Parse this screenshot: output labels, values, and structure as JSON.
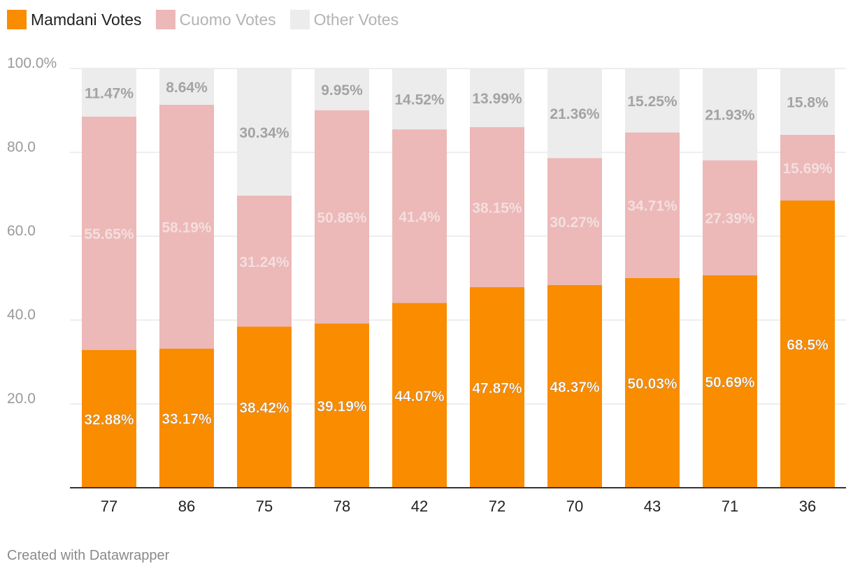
{
  "chart_data": {
    "type": "bar",
    "stacked": true,
    "categories": [
      "77",
      "86",
      "75",
      "78",
      "42",
      "72",
      "70",
      "43",
      "71",
      "36"
    ],
    "series": [
      {
        "name": "Mamdani Votes",
        "color": "#fa8c00",
        "label_color": "#ffffff",
        "values": [
          32.88,
          33.17,
          38.42,
          39.19,
          44.07,
          47.87,
          48.37,
          50.03,
          50.69,
          68.5
        ],
        "labels": [
          "32.88%",
          "33.17%",
          "38.42%",
          "39.19%",
          "44.07%",
          "47.87%",
          "48.37%",
          "50.03%",
          "50.69%",
          "68.5%"
        ]
      },
      {
        "name": "Cuomo Votes",
        "color": "#ecb8b8",
        "label_color": "#f4dede",
        "values": [
          55.65,
          58.19,
          31.24,
          50.86,
          41.4,
          38.15,
          30.27,
          34.71,
          27.39,
          15.69
        ],
        "labels": [
          "55.65%",
          "58.19%",
          "31.24%",
          "50.86%",
          "41.4%",
          "38.15%",
          "30.27%",
          "34.71%",
          "27.39%",
          "15.69%"
        ]
      },
      {
        "name": "Other Votes",
        "color": "#ececec",
        "label_color": "#a3a3a3",
        "values": [
          11.47,
          8.64,
          30.34,
          9.95,
          14.52,
          13.99,
          21.36,
          15.25,
          21.93,
          15.8
        ],
        "labels": [
          "11.47%",
          "8.64%",
          "30.34%",
          "9.95%",
          "14.52%",
          "13.99%",
          "21.36%",
          "15.25%",
          "21.93%",
          "15.8%"
        ]
      }
    ],
    "yticks": [
      20,
      40,
      60,
      80,
      100
    ],
    "ytick_labels": [
      "20.0",
      "40.0",
      "60.0",
      "80.0",
      "100.0%"
    ],
    "ylim": [
      0,
      100
    ],
    "grid": true,
    "legend_position": "top-left",
    "title": "",
    "xlabel": "",
    "ylabel": ""
  },
  "legend": {
    "mamdani": "Mamdani Votes",
    "cuomo": "Cuomo Votes",
    "other": "Other Votes"
  },
  "footer": "Created with Datawrapper"
}
